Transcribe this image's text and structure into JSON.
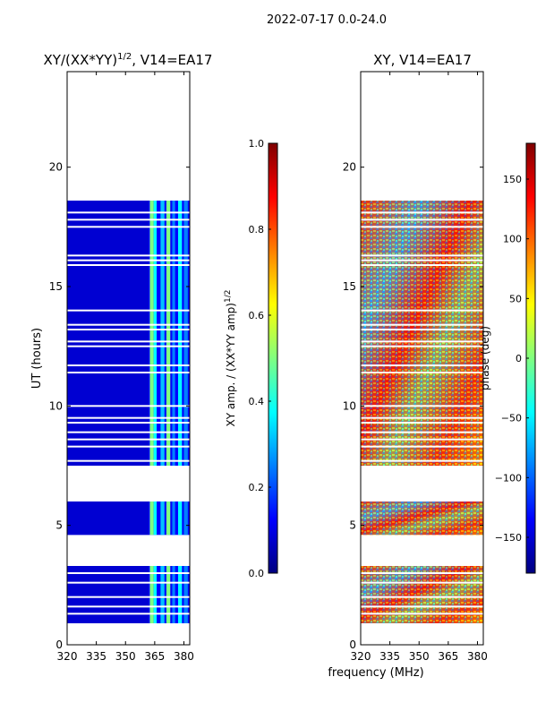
{
  "figure": {
    "suptitle": "2022-07-17 0.0-24.0",
    "shared_xlabel": "frequency (MHz)"
  },
  "colors": {
    "jet": [
      "#00007f",
      "#0000ff",
      "#0080ff",
      "#00ffff",
      "#80ff80",
      "#ffff00",
      "#ff8000",
      "#ff0000",
      "#7f0000"
    ],
    "gap": "#ffffff",
    "axis": "#000000"
  },
  "chart_data": [
    {
      "type": "heatmap",
      "title": "XY/(XX*YY)",
      "title_exp": "1/2",
      "title_suffix": ", V14=EA17",
      "xlabel": "frequency (MHz)",
      "ylabel": "UT (hours)",
      "xlim": [
        320,
        383
      ],
      "ylim": [
        0,
        24
      ],
      "xticks": [
        "320",
        "335",
        "350",
        "365",
        "380"
      ],
      "yticks": [
        "0",
        "5",
        "10",
        "15",
        "20"
      ],
      "colorbar": {
        "label": "XY amp. / (XX*YY amp)",
        "label_exp": "1/2",
        "range": [
          0.0,
          1.0
        ],
        "ticks": [
          "0.0",
          "0.2",
          "0.4",
          "0.6",
          "0.8",
          "1.0"
        ]
      },
      "data_blocks_ut": [
        [
          0.9,
          3.3
        ],
        [
          4.6,
          6.0
        ],
        [
          7.5,
          18.6
        ]
      ],
      "gap_lines_ut": [
        1.3,
        1.6,
        2.0,
        2.6,
        3.0,
        7.7,
        8.3,
        8.6,
        8.9,
        9.3,
        9.5,
        10.0,
        11.4,
        11.7,
        12.5,
        12.7,
        13.2,
        13.4,
        14.0,
        15.9,
        16.1,
        16.3,
        17.5,
        17.8,
        18.1
      ]
    },
    {
      "type": "heatmap",
      "title": "XY, V14=EA17",
      "xlabel": "frequency (MHz)",
      "ylabel": "",
      "xlim": [
        320,
        383
      ],
      "ylim": [
        0,
        24
      ],
      "xticks": [
        "320",
        "335",
        "350",
        "365",
        "380"
      ],
      "yticks": [
        "0",
        "5",
        "10",
        "15",
        "20"
      ],
      "colorbar": {
        "label": "phase (deg)",
        "range": [
          -180,
          180
        ],
        "ticks": [
          "−150",
          "−100",
          "−50",
          "0",
          "50",
          "100",
          "150"
        ]
      },
      "data_blocks_ut": [
        [
          0.9,
          3.3
        ],
        [
          4.6,
          6.0
        ],
        [
          7.5,
          18.6
        ]
      ],
      "gap_lines_ut": [
        1.3,
        1.6,
        2.0,
        2.6,
        3.0,
        7.7,
        8.3,
        8.6,
        8.9,
        9.3,
        9.5,
        10.0,
        11.4,
        11.7,
        12.5,
        12.7,
        13.2,
        13.4,
        14.0,
        15.9,
        16.1,
        16.3,
        17.5,
        17.8,
        18.1
      ]
    }
  ]
}
